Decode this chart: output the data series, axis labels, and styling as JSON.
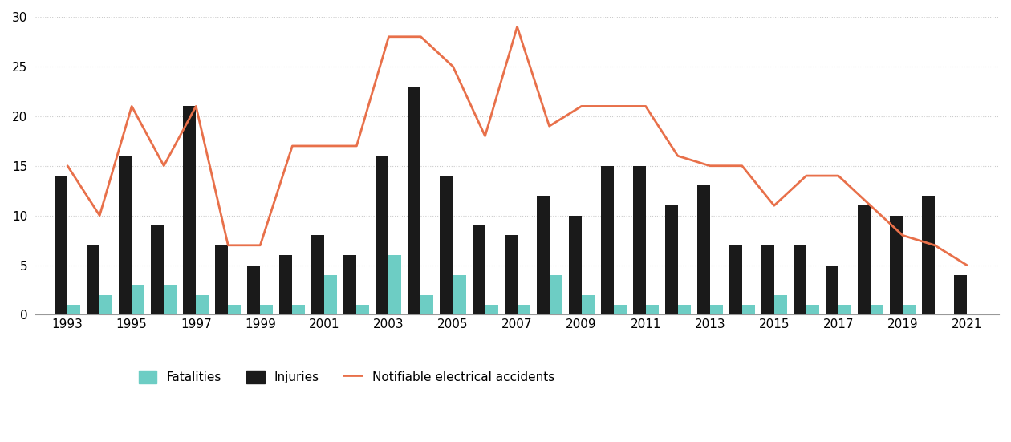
{
  "years": [
    1993,
    1994,
    1995,
    1996,
    1997,
    1998,
    1999,
    2000,
    2001,
    2002,
    2003,
    2004,
    2005,
    2006,
    2007,
    2008,
    2009,
    2010,
    2011,
    2012,
    2013,
    2014,
    2015,
    2016,
    2017,
    2018,
    2019,
    2020,
    2021
  ],
  "fatalities": [
    1,
    2,
    3,
    3,
    2,
    1,
    1,
    1,
    4,
    1,
    6,
    2,
    4,
    1,
    1,
    4,
    2,
    1,
    1,
    1,
    1,
    1,
    2,
    1,
    1,
    1,
    1,
    0,
    0
  ],
  "injuries": [
    14,
    7,
    16,
    9,
    21,
    7,
    5,
    6,
    8,
    6,
    16,
    23,
    14,
    9,
    8,
    12,
    10,
    15,
    15,
    11,
    13,
    7,
    7,
    7,
    5,
    11,
    10,
    12,
    4
  ],
  "notifiable": [
    15,
    10,
    21,
    15,
    21,
    7,
    7,
    17,
    17,
    17,
    28,
    28,
    25,
    18,
    29,
    19,
    21,
    21,
    21,
    16,
    15,
    15,
    11,
    14,
    14,
    11,
    8,
    7,
    5
  ],
  "bar_width": 0.4,
  "injuries_color": "#1a1a1a",
  "fatalities_color": "#6dcdc4",
  "line_color": "#e8704a",
  "background_color": "#ffffff",
  "grid_color": "#cccccc",
  "ylim": [
    0,
    30
  ],
  "yticks": [
    0,
    5,
    10,
    15,
    20,
    25,
    30
  ],
  "xlabel": "",
  "ylabel": "",
  "legend_fatalities": "Fatalities",
  "legend_injuries": "Injuries",
  "legend_notifiable": "Notifiable electrical accidents"
}
